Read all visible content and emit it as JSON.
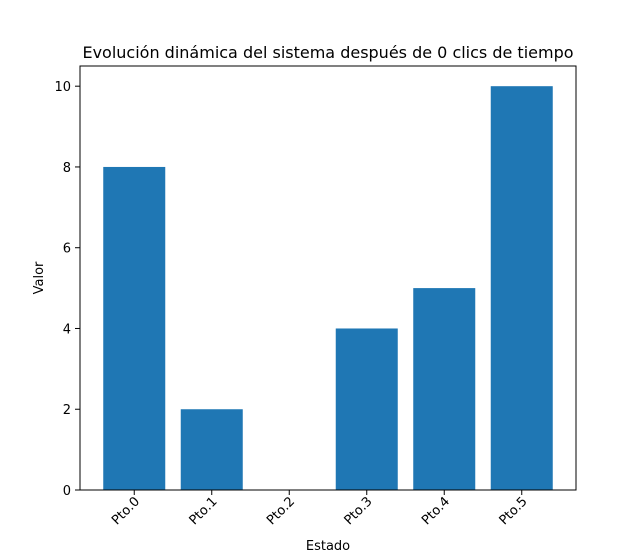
{
  "chart_data": {
    "type": "bar",
    "title": "Evolución dinámica del sistema después de 0 clics de tiempo",
    "xlabel": "Estado",
    "ylabel": "Valor",
    "categories": [
      "Pto.0",
      "Pto.1",
      "Pto.2",
      "Pto.3",
      "Pto.4",
      "Pto.5"
    ],
    "values": [
      8,
      2,
      0,
      4,
      5,
      10
    ],
    "ylim": [
      0,
      10.5
    ],
    "yticks": [
      "0",
      "2",
      "4",
      "6",
      "8",
      "10"
    ],
    "bar_color": "#1f77b4",
    "grid": false,
    "legend": "none"
  }
}
